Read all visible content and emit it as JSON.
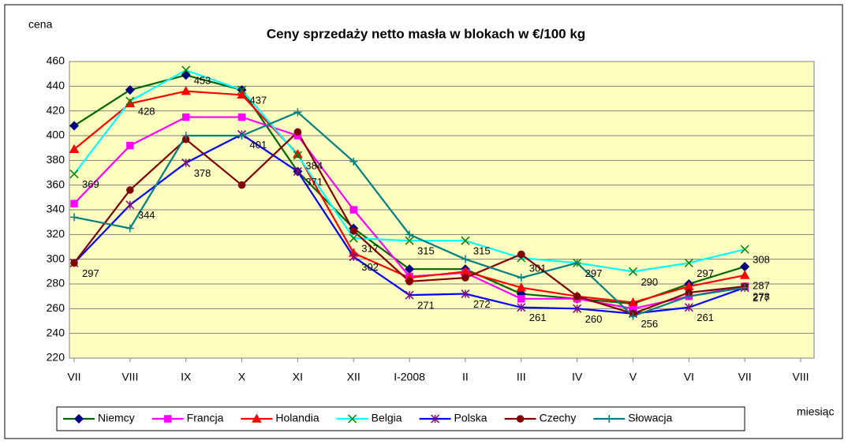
{
  "chart_data": {
    "type": "line",
    "title": "Ceny sprzedaży netto masła w blokach w €/100 kg",
    "y_label": "cena",
    "x_label": "miesiąc",
    "categories": [
      "VII",
      "VIII",
      "IX",
      "X",
      "XI",
      "XII",
      "I-2008",
      "II",
      "III",
      "IV",
      "V",
      "VI",
      "VII",
      "VIII"
    ],
    "ylim": [
      220,
      460
    ],
    "yticks": [
      220,
      240,
      260,
      280,
      300,
      320,
      340,
      360,
      380,
      400,
      420,
      440,
      460
    ],
    "grid": true,
    "legend": "bottom",
    "series": [
      {
        "name": "Niemcy",
        "color": "#006600",
        "marker": "diamond",
        "values": [
          408,
          437,
          449,
          437,
          371,
          325,
          292,
          292,
          272,
          268,
          264,
          280,
          294,
          null
        ]
      },
      {
        "name": "Francja",
        "color": "#ff00ff",
        "marker": "square",
        "values": [
          345,
          392,
          415,
          415,
          400,
          340,
          286,
          289,
          268,
          268,
          260,
          270,
          278,
          null
        ]
      },
      {
        "name": "Holandia",
        "color": "#ff0000",
        "marker": "triangle",
        "values": [
          389,
          426,
          436,
          433,
          385,
          305,
          285,
          290,
          277,
          270,
          265,
          278,
          287,
          null
        ],
        "value_labels": [
          null,
          null,
          null,
          null,
          null,
          null,
          null,
          null,
          null,
          null,
          null,
          null,
          "287",
          null
        ]
      },
      {
        "name": "Belgia",
        "color": "#00ffff",
        "marker": "x",
        "values": [
          369,
          428,
          453,
          437,
          384,
          317,
          315,
          315,
          301,
          297,
          290,
          297,
          308,
          null
        ],
        "value_labels": [
          "369",
          "428",
          "453",
          "437",
          "384",
          "317",
          "315",
          "315",
          "301",
          "297",
          "290",
          "297",
          "308",
          null
        ]
      },
      {
        "name": "Polska",
        "color": "#0000ff",
        "marker": "star",
        "values": [
          297,
          344,
          378,
          401,
          371,
          302,
          271,
          272,
          261,
          260,
          256,
          261,
          277,
          null
        ],
        "value_labels": [
          "297",
          "344",
          "378",
          "401",
          "371",
          "302",
          "271",
          "272",
          "261",
          "260",
          "256",
          "261",
          "277",
          null
        ]
      },
      {
        "name": "Czechy",
        "color": "#800000",
        "marker": "circle",
        "values": [
          297,
          356,
          397,
          360,
          403,
          323,
          282,
          285,
          304,
          270,
          256,
          273,
          278,
          null
        ],
        "value_labels": [
          null,
          null,
          null,
          null,
          null,
          null,
          null,
          null,
          null,
          null,
          null,
          null,
          "278",
          null
        ]
      },
      {
        "name": "Słowacja",
        "color": "#008080",
        "marker": "plus",
        "values": [
          334,
          325,
          400,
          400,
          419,
          379,
          320,
          300,
          285,
          297,
          254,
          270,
          277,
          null
        ]
      }
    ]
  }
}
